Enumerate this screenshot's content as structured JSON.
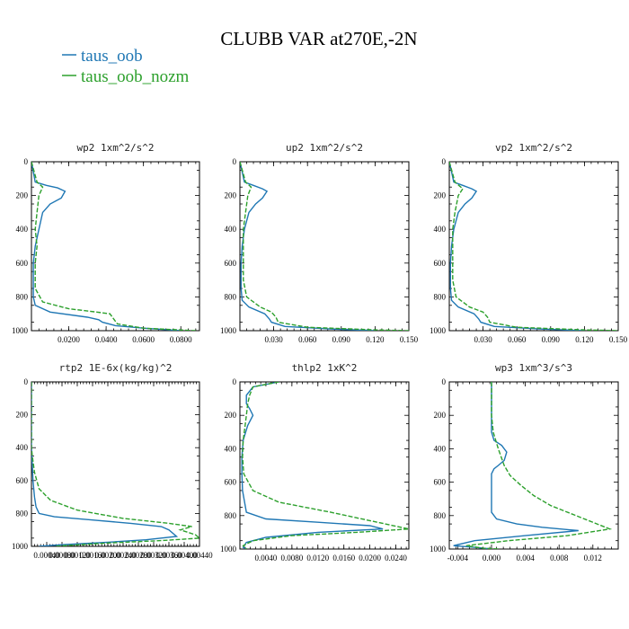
{
  "figure": {
    "title": "CLUBB VAR at270E,-2N",
    "legend": [
      {
        "name": "taus_oob",
        "color": "#1f77b4",
        "dash": "solid"
      },
      {
        "name": "taus_oob_nozm",
        "color": "#2ca02c",
        "dash": "dashed"
      }
    ]
  },
  "chart_data": [
    {
      "type": "line",
      "title": "wp2  1xm^2/s^2",
      "xlim": [
        0,
        0.09
      ],
      "xticks": [
        0.02,
        0.04,
        0.06,
        0.08
      ],
      "xtick_labels": [
        "0.0200",
        "0.0400",
        "0.0600",
        "0.0800"
      ],
      "ylim": [
        1000,
        0
      ],
      "yticks": [
        0,
        200,
        400,
        600,
        800,
        1000
      ],
      "ytick_labels": [
        "0",
        "200",
        "400",
        "600",
        "800",
        "1000"
      ],
      "series": [
        {
          "name": "taus_oob",
          "x": [
            0,
            0.002,
            0.008,
            0.014,
            0.018,
            0.016,
            0.01,
            0.006,
            0.004,
            0.002,
            0.001,
            0.001,
            0.001,
            0.002,
            0.01,
            0.03,
            0.036,
            0.038,
            0.045,
            0.06,
            0.08
          ],
          "y": [
            0,
            120,
            140,
            155,
            175,
            215,
            250,
            300,
            400,
            500,
            600,
            700,
            800,
            850,
            890,
            920,
            935,
            950,
            970,
            985,
            1000
          ]
        },
        {
          "name": "taus_oob_nozm",
          "x": [
            0,
            0.003,
            0.006,
            0.004,
            0.003,
            0.002,
            0.003,
            0.002,
            0.002,
            0.006,
            0.02,
            0.035,
            0.042,
            0.044,
            0.046,
            0.06,
            0.088
          ],
          "y": [
            0,
            120,
            150,
            200,
            300,
            400,
            500,
            600,
            750,
            830,
            870,
            890,
            900,
            930,
            960,
            985,
            1000
          ]
        }
      ]
    },
    {
      "type": "line",
      "title": "up2  1xm^2/s^2",
      "xlim": [
        0,
        0.15
      ],
      "xticks": [
        0.03,
        0.06,
        0.09,
        0.12,
        0.15
      ],
      "xtick_labels": [
        "0.030",
        "0.060",
        "0.090",
        "0.120",
        "0.150"
      ],
      "ylim": [
        1000,
        0
      ],
      "yticks": [
        0,
        200,
        400,
        600,
        800,
        1000
      ],
      "ytick_labels": [
        "0",
        "200",
        "400",
        "600",
        "800",
        "1000"
      ],
      "series": [
        {
          "name": "taus_oob",
          "x": [
            0,
            0.004,
            0.012,
            0.02,
            0.024,
            0.02,
            0.014,
            0.008,
            0.004,
            0.002,
            0.001,
            0.001,
            0.002,
            0.008,
            0.022,
            0.026,
            0.028,
            0.04,
            0.08,
            0.12
          ],
          "y": [
            0,
            120,
            140,
            160,
            175,
            215,
            250,
            300,
            400,
            500,
            600,
            750,
            820,
            860,
            900,
            930,
            950,
            975,
            990,
            1000
          ]
        },
        {
          "name": "taus_oob_nozm",
          "x": [
            0,
            0.005,
            0.01,
            0.007,
            0.005,
            0.003,
            0.003,
            0.003,
            0.006,
            0.018,
            0.028,
            0.032,
            0.034,
            0.06,
            0.12,
            0.15
          ],
          "y": [
            0,
            120,
            150,
            200,
            300,
            400,
            550,
            700,
            800,
            860,
            890,
            920,
            950,
            980,
            995,
            1000
          ]
        }
      ]
    },
    {
      "type": "line",
      "title": "vp2  1xm^2/s^2",
      "xlim": [
        0,
        0.15
      ],
      "xticks": [
        0.03,
        0.06,
        0.09,
        0.12,
        0.15
      ],
      "xtick_labels": [
        "0.030",
        "0.060",
        "0.090",
        "0.120",
        "0.150"
      ],
      "ylim": [
        1000,
        0
      ],
      "yticks": [
        0,
        200,
        400,
        600,
        800,
        1000
      ],
      "ytick_labels": [
        "0",
        "200",
        "400",
        "600",
        "800",
        "1000"
      ],
      "series": [
        {
          "name": "taus_oob",
          "x": [
            0,
            0.004,
            0.012,
            0.02,
            0.024,
            0.02,
            0.014,
            0.008,
            0.004,
            0.002,
            0.001,
            0.001,
            0.002,
            0.008,
            0.022,
            0.026,
            0.028,
            0.04,
            0.08,
            0.12
          ],
          "y": [
            0,
            120,
            140,
            160,
            175,
            215,
            250,
            300,
            400,
            500,
            600,
            750,
            820,
            860,
            900,
            930,
            950,
            975,
            990,
            1000
          ]
        },
        {
          "name": "taus_oob_nozm",
          "x": [
            0,
            0.005,
            0.012,
            0.008,
            0.005,
            0.003,
            0.003,
            0.003,
            0.006,
            0.018,
            0.03,
            0.034,
            0.036,
            0.06,
            0.12,
            0.15
          ],
          "y": [
            0,
            120,
            160,
            200,
            300,
            400,
            550,
            700,
            800,
            860,
            890,
            920,
            950,
            980,
            995,
            1000
          ]
        }
      ]
    },
    {
      "type": "line",
      "title": "rtp2  1E-6x(kg/kg)^2",
      "xlim": [
        0,
        0.0044
      ],
      "xticks": [
        0.0004,
        0.0008,
        0.0012,
        0.0016,
        0.002,
        0.0024,
        0.0028,
        0.0032,
        0.0036,
        0.004,
        0.0044
      ],
      "xtick_labels": [
        "0.00040",
        "0.00080",
        "0.00120",
        "0.00160",
        "0.00200",
        "0.00240",
        "0.00280",
        "0.00320",
        "0.00360",
        "0.00400",
        "0.00440"
      ],
      "ylim": [
        1000,
        0
      ],
      "yticks": [
        0,
        200,
        400,
        600,
        800,
        1000
      ],
      "ytick_labels": [
        "0",
        "200",
        "400",
        "600",
        "800",
        "1000"
      ],
      "series": [
        {
          "name": "taus_oob",
          "x": [
            0,
            0,
            2e-05,
            4e-05,
            8e-05,
            0.00012,
            0.0002,
            0.0006,
            0.0016,
            0.0026,
            0.0034,
            0.0036,
            0.0038,
            0.003,
            0.002,
            0.0008,
            0.0002
          ],
          "y": [
            0,
            400,
            500,
            600,
            700,
            760,
            800,
            820,
            840,
            860,
            880,
            900,
            940,
            960,
            975,
            990,
            1000
          ]
        },
        {
          "name": "taus_oob_nozm",
          "x": [
            0,
            0,
            2e-05,
            8e-05,
            0.0002,
            0.0005,
            0.0012,
            0.0024,
            0.0036,
            0.0042,
            0.0039,
            0.0043,
            0.0044,
            0.0034,
            0.002,
            0.0006
          ],
          "y": [
            0,
            400,
            450,
            550,
            650,
            720,
            780,
            830,
            860,
            880,
            900,
            930,
            950,
            965,
            980,
            1000
          ]
        }
      ]
    },
    {
      "type": "line",
      "title": "thlp2  1xK^2",
      "xlim": [
        0,
        0.026
      ],
      "xticks": [
        0.004,
        0.008,
        0.012,
        0.016,
        0.02,
        0.024
      ],
      "xtick_labels": [
        "0.0040",
        "0.0080",
        "0.0120",
        "0.0160",
        "0.0200",
        "0.0240"
      ],
      "ylim": [
        1000,
        0
      ],
      "yticks": [
        0,
        200,
        400,
        600,
        800,
        1000
      ],
      "ytick_labels": [
        "0",
        "200",
        "400",
        "600",
        "800",
        "1000"
      ],
      "series": [
        {
          "name": "taus_oob",
          "x": [
            0.006,
            0.002,
            0.001,
            0.001,
            0.0015,
            0.002,
            0.0012,
            0.0005,
            0.0003,
            0.0003,
            0.0004,
            0.001,
            0.004,
            0.012,
            0.02,
            0.022,
            0.012,
            0.004,
            0.001,
            0.0005,
            0.001
          ],
          "y": [
            0,
            30,
            80,
            130,
            160,
            200,
            260,
            350,
            450,
            550,
            650,
            780,
            820,
            840,
            860,
            880,
            900,
            930,
            960,
            990,
            1000
          ]
        },
        {
          "name": "taus_oob_nozm",
          "x": [
            0.006,
            0.002,
            0.0015,
            0.0012,
            0.001,
            0.0008,
            0.0005,
            0.0004,
            0.0006,
            0.002,
            0.006,
            0.014,
            0.02,
            0.026,
            0.018,
            0.008,
            0.002,
            0.0005,
            0.001
          ],
          "y": [
            0,
            30,
            80,
            130,
            200,
            260,
            350,
            450,
            550,
            650,
            720,
            780,
            830,
            880,
            900,
            920,
            950,
            980,
            1000
          ]
        }
      ]
    },
    {
      "type": "line",
      "title": "wp3  1xm^3/s^3",
      "xlim": [
        -0.005,
        0.015
      ],
      "xticks": [
        -0.004,
        0,
        0.004,
        0.008,
        0.012
      ],
      "xtick_labels": [
        "-0.004",
        "0.000",
        "0.004",
        "0.008",
        "0.012"
      ],
      "ylim": [
        1000,
        0
      ],
      "yticks": [
        0,
        200,
        400,
        600,
        800,
        1000
      ],
      "ytick_labels": [
        "0",
        "200",
        "400",
        "600",
        "800",
        "1000"
      ],
      "series": [
        {
          "name": "taus_oob",
          "x": [
            0,
            0,
            0,
            0.0003,
            0.0012,
            0.0018,
            0.0015,
            0.0008,
            0.0003,
            0,
            0,
            0,
            0.0006,
            0.003,
            0.006,
            0.0103,
            0.004,
            -0.002,
            -0.0045,
            -0.002,
            0
          ],
          "y": [
            0,
            200,
            300,
            350,
            380,
            420,
            470,
            500,
            520,
            550,
            650,
            780,
            820,
            850,
            870,
            890,
            920,
            950,
            980,
            990,
            1000
          ]
        },
        {
          "name": "taus_oob_nozm",
          "x": [
            0,
            0,
            0.0002,
            0.0008,
            0.0015,
            0.0022,
            0.0035,
            0.005,
            0.007,
            0.01,
            0.014,
            0.009,
            0.002,
            -0.003,
            -0.001,
            0.001
          ],
          "y": [
            0,
            200,
            300,
            400,
            500,
            560,
            620,
            680,
            740,
            800,
            880,
            920,
            950,
            980,
            995,
            1000
          ]
        }
      ]
    }
  ]
}
